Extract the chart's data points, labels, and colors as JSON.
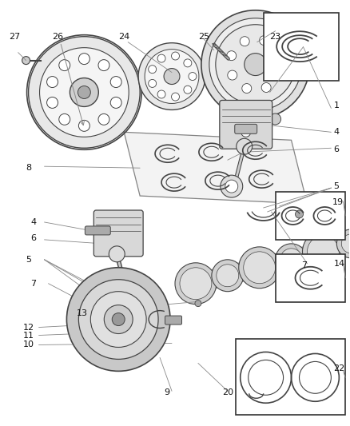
{
  "bg_color": "#ffffff",
  "fig_width": 4.38,
  "fig_height": 5.33,
  "dpi": 100,
  "line_color": "#888888",
  "dark_color": "#333333",
  "part_edge": "#444444",
  "part_fill": "#cccccc",
  "part_fill2": "#bbbbbb",
  "box_color": "#333333"
}
